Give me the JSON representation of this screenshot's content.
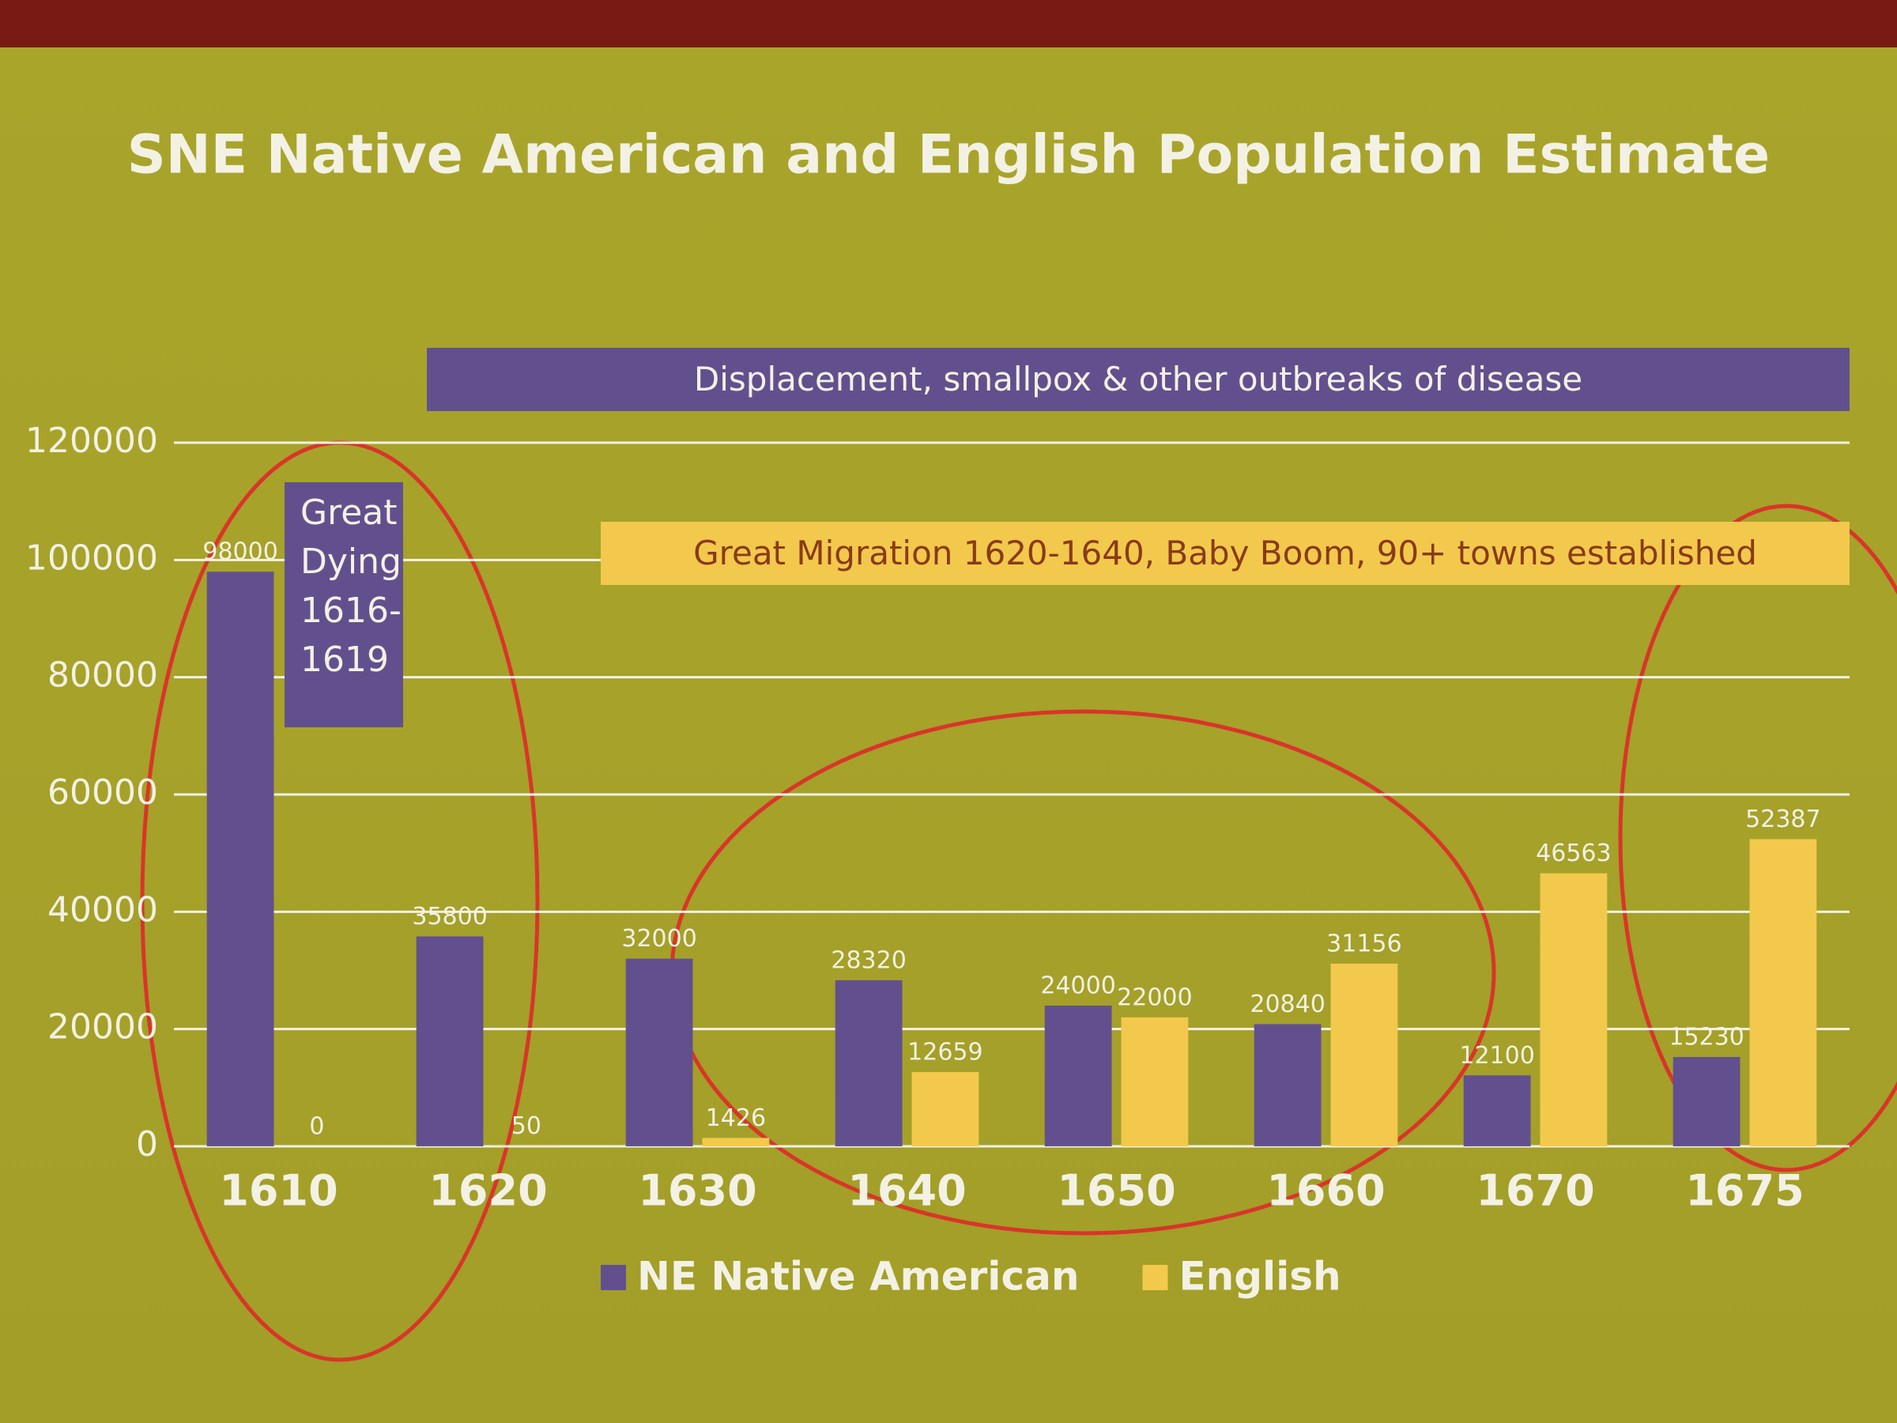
{
  "chart_data": {
    "type": "bar",
    "title": "SNE Native American and English Population Estimate",
    "categories": [
      "1610",
      "1620",
      "1630",
      "1640",
      "1650",
      "1660",
      "1670",
      "1675"
    ],
    "series": [
      {
        "name": "NE Native American",
        "color": "#62508e",
        "values": [
          98000,
          35800,
          32000,
          28320,
          24000,
          20840,
          12100,
          15230
        ]
      },
      {
        "name": "English",
        "color": "#f2c94c",
        "values": [
          0,
          50,
          1426,
          12659,
          22000,
          31156,
          46563,
          52387
        ]
      }
    ],
    "ylim": [
      0,
      120000
    ],
    "yticks": [
      0,
      20000,
      40000,
      60000,
      80000,
      100000,
      120000
    ],
    "grid": true,
    "legend": "bottom",
    "annotations": [
      "Great Dying 1616-1619",
      "Displacement, smallpox & other outbreaks of disease",
      "Great Migration 1620-1640, Baby Boom, 90+ towns established"
    ]
  }
}
